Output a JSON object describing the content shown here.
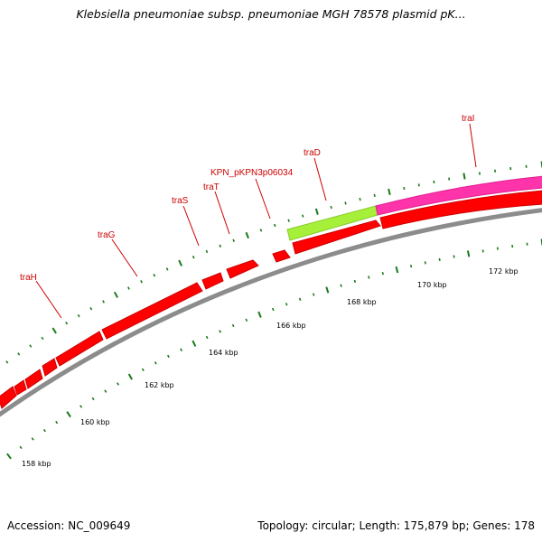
{
  "title": "Klebsiella pneumoniae subsp. pneumoniae MGH 78578 plasmid pK...",
  "footer": {
    "accession": "Accession: NC_009649",
    "topology": "Topology: circular; Length: 175,879 bp; Genes: 178"
  },
  "colors": {
    "gene": "#ff0000",
    "backbone": "#808080",
    "tick": "#1a7a1a",
    "label": "#cc0000",
    "highlight_green": "#99ee33",
    "highlight_pink": "#ff3399"
  },
  "scale_labels": [
    "158 kbp",
    "160 kbp",
    "162 kbp",
    "164 kbp",
    "166 kbp",
    "168 kbp",
    "170 kbp",
    "172 kbp"
  ],
  "gene_labels": [
    {
      "name": "traH"
    },
    {
      "name": "traG"
    },
    {
      "name": "traS"
    },
    {
      "name": "traT"
    },
    {
      "name": "KPN_pKPN3p06034"
    },
    {
      "name": "traD"
    },
    {
      "name": "traI"
    }
  ]
}
